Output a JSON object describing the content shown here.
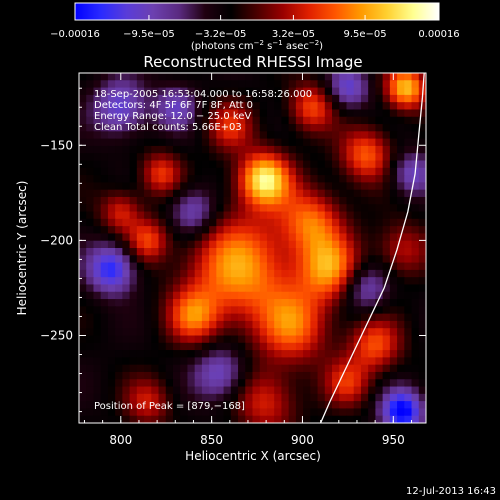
{
  "chart_data": {
    "type": "heatmap",
    "title": "Reconstructed RHESSI Image",
    "xlabel": "Heliocentric X (arcsec)",
    "ylabel": "Heliocentric Y (arcsec)",
    "xlim": [
      777,
      968
    ],
    "ylim": [
      -296,
      -112
    ],
    "x_ticks": [
      800,
      850,
      900,
      950
    ],
    "x_tick_labels": [
      "800",
      "850",
      "900",
      "950"
    ],
    "y_ticks": [
      -250,
      -200,
      -150
    ],
    "y_tick_labels": [
      "−250",
      "−200",
      "−150"
    ],
    "colorbar": {
      "range": [
        -0.00016,
        0.00016
      ],
      "ticks": [
        -0.00016,
        -9.5e-05,
        -3.2e-05,
        3.2e-05,
        9.5e-05,
        0.00016
      ],
      "tick_labels": [
        "−0.00016",
        "−9.5e−05",
        "−3.2e−05",
        "3.2e−05",
        "9.5e−05",
        "0.00016"
      ],
      "colors": [
        "#0000ff",
        "#2a2aff",
        "#5a3cd8",
        "#6c40b0",
        "#5a2a80",
        "#200010",
        "#000000",
        "#4a0000",
        "#9a0000",
        "#e02000",
        "#ff5500",
        "#ff9a00",
        "#ffd030",
        "#ffff90",
        "#ffffff"
      ],
      "unit_parts": [
        "(photons cm",
        "−2",
        " s",
        "−1",
        " asec",
        "−2",
        ")"
      ]
    },
    "info_lines": [
      "18-Sep-2005 16:53:04.000 to 16:58:26.000",
      "Detectors: 4F 5F 6F 7F 8F, Att 0",
      "Energy Range: 12.0 − 25.0 keV",
      "Clean     Total counts: 5.66E+03"
    ],
    "peak_label": "Position of Peak = [879,−168]",
    "limb_points": [
      [
        910,
        -296
      ],
      [
        915,
        -285
      ],
      [
        925,
        -265
      ],
      [
        935,
        -245
      ],
      [
        945,
        -225
      ],
      [
        952,
        -205
      ],
      [
        958,
        -185
      ],
      [
        962,
        -165
      ],
      [
        964,
        -145
      ],
      [
        966,
        -125
      ],
      [
        967,
        -112
      ]
    ],
    "blobs": [
      {
        "x": 879,
        "y": -168,
        "s": 10,
        "a": 1.0
      },
      {
        "x": 865,
        "y": -215,
        "s": 20,
        "a": 0.75
      },
      {
        "x": 905,
        "y": -190,
        "s": 12,
        "a": 0.6
      },
      {
        "x": 915,
        "y": -215,
        "s": 12,
        "a": 0.7
      },
      {
        "x": 895,
        "y": -245,
        "s": 14,
        "a": 0.6
      },
      {
        "x": 840,
        "y": -240,
        "s": 10,
        "a": 0.55
      },
      {
        "x": 815,
        "y": -200,
        "s": 8,
        "a": 0.5
      },
      {
        "x": 800,
        "y": -185,
        "s": 8,
        "a": 0.45
      },
      {
        "x": 822,
        "y": -165,
        "s": 8,
        "a": 0.5
      },
      {
        "x": 860,
        "y": -140,
        "s": 9,
        "a": 0.45
      },
      {
        "x": 905,
        "y": -130,
        "s": 9,
        "a": 0.55
      },
      {
        "x": 935,
        "y": -155,
        "s": 10,
        "a": 0.6
      },
      {
        "x": 957,
        "y": -120,
        "s": 8,
        "a": 0.85
      },
      {
        "x": 940,
        "y": -255,
        "s": 10,
        "a": 0.55
      },
      {
        "x": 925,
        "y": -275,
        "s": 9,
        "a": 0.45
      },
      {
        "x": 880,
        "y": -285,
        "s": 12,
        "a": 0.45
      },
      {
        "x": 815,
        "y": -285,
        "s": 9,
        "a": 0.4
      },
      {
        "x": 955,
        "y": -205,
        "s": 10,
        "a": 0.4
      },
      {
        "x": 955,
        "y": -290,
        "s": 8,
        "a": -0.85
      },
      {
        "x": 795,
        "y": -215,
        "s": 9,
        "a": -0.7
      },
      {
        "x": 840,
        "y": -185,
        "s": 9,
        "a": -0.5
      },
      {
        "x": 855,
        "y": -270,
        "s": 10,
        "a": -0.5
      },
      {
        "x": 925,
        "y": -120,
        "s": 8,
        "a": -0.5
      },
      {
        "x": 800,
        "y": -130,
        "s": 10,
        "a": -0.55
      },
      {
        "x": 935,
        "y": -225,
        "s": 9,
        "a": -0.45
      },
      {
        "x": 830,
        "y": -130,
        "s": 8,
        "a": -0.4
      },
      {
        "x": 960,
        "y": -165,
        "s": 8,
        "a": -0.45
      }
    ]
  },
  "footer": {
    "timestamp": "12-Jul-2013 16:43"
  }
}
